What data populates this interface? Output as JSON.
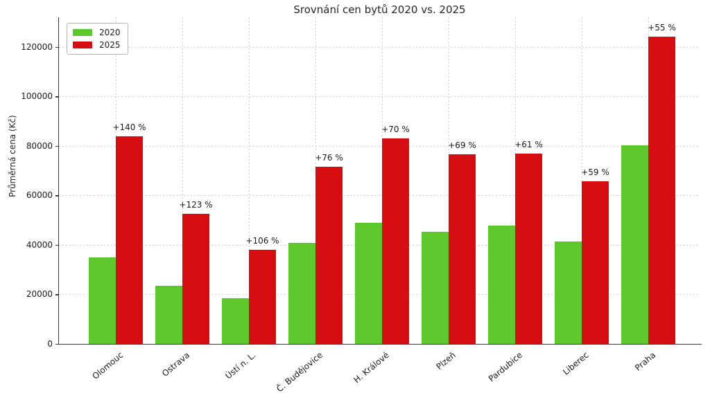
{
  "chart_data": {
    "type": "bar",
    "title": "Srovnání cen bytů 2020 vs. 2025",
    "xlabel": "",
    "ylabel": "Průměrná cena (Kč)",
    "categories": [
      "Olomouc",
      "Ostrava",
      "Ústí n. L.",
      "Č. Budějovice",
      "H. Králové",
      "Plzeň",
      "Pardubice",
      "Liberec",
      "Praha"
    ],
    "series": [
      {
        "name": "2020",
        "color": "#5cc82c",
        "values": [
          35000,
          23600,
          18400,
          40700,
          48900,
          45400,
          47700,
          41300,
          80200
        ]
      },
      {
        "name": "2025",
        "color": "#d60e12",
        "values": [
          84000,
          52600,
          37900,
          71600,
          83100,
          76700,
          76800,
          65700,
          124300
        ]
      }
    ],
    "annotations": [
      "+140 %",
      "+123 %",
      "+106 %",
      "+76 %",
      "+70 %",
      "+69 %",
      "+61 %",
      "+59 %",
      "+55 %"
    ],
    "yticks": [
      0,
      20000,
      40000,
      60000,
      80000,
      100000,
      120000
    ],
    "ylim": [
      0,
      132000
    ],
    "grid": "dashed-both-axes",
    "legend_position": "upper-left"
  },
  "colors": {
    "bar_2020": "#5cc82c",
    "bar_2025": "#d60e12",
    "gridline": "#cccccc",
    "spine": "#3a3a3a",
    "text": "#1a1a1a",
    "background": "#ffffff"
  }
}
